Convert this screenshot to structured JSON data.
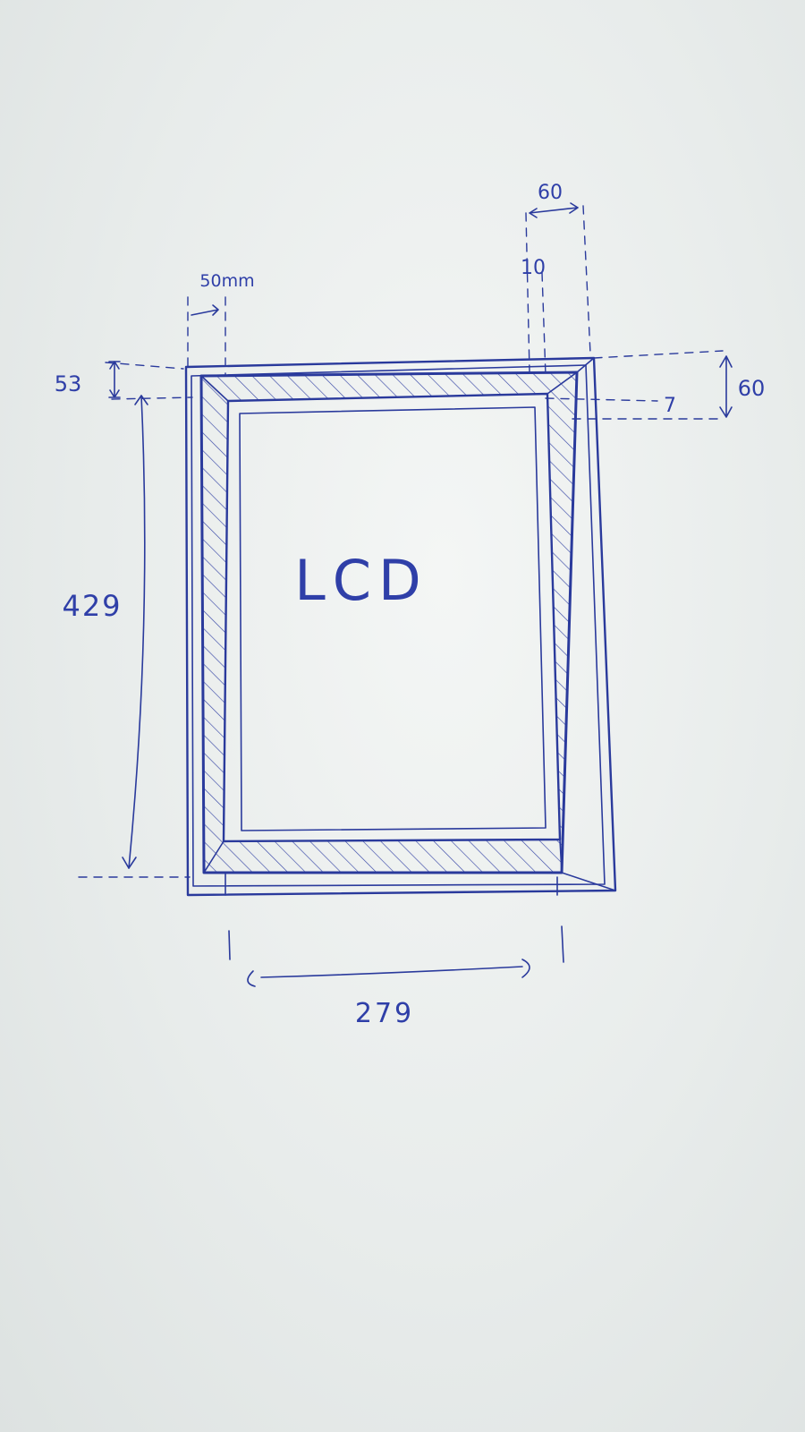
{
  "diagram": {
    "center_label": "LCD",
    "dimensions": {
      "outer_top_width": "60",
      "inner_gap_top": "10",
      "left_margin": "50mm",
      "top_offset": "53",
      "right_offset_small": "7",
      "right_height": "60",
      "lcd_height": "429",
      "lcd_width": "279"
    }
  }
}
